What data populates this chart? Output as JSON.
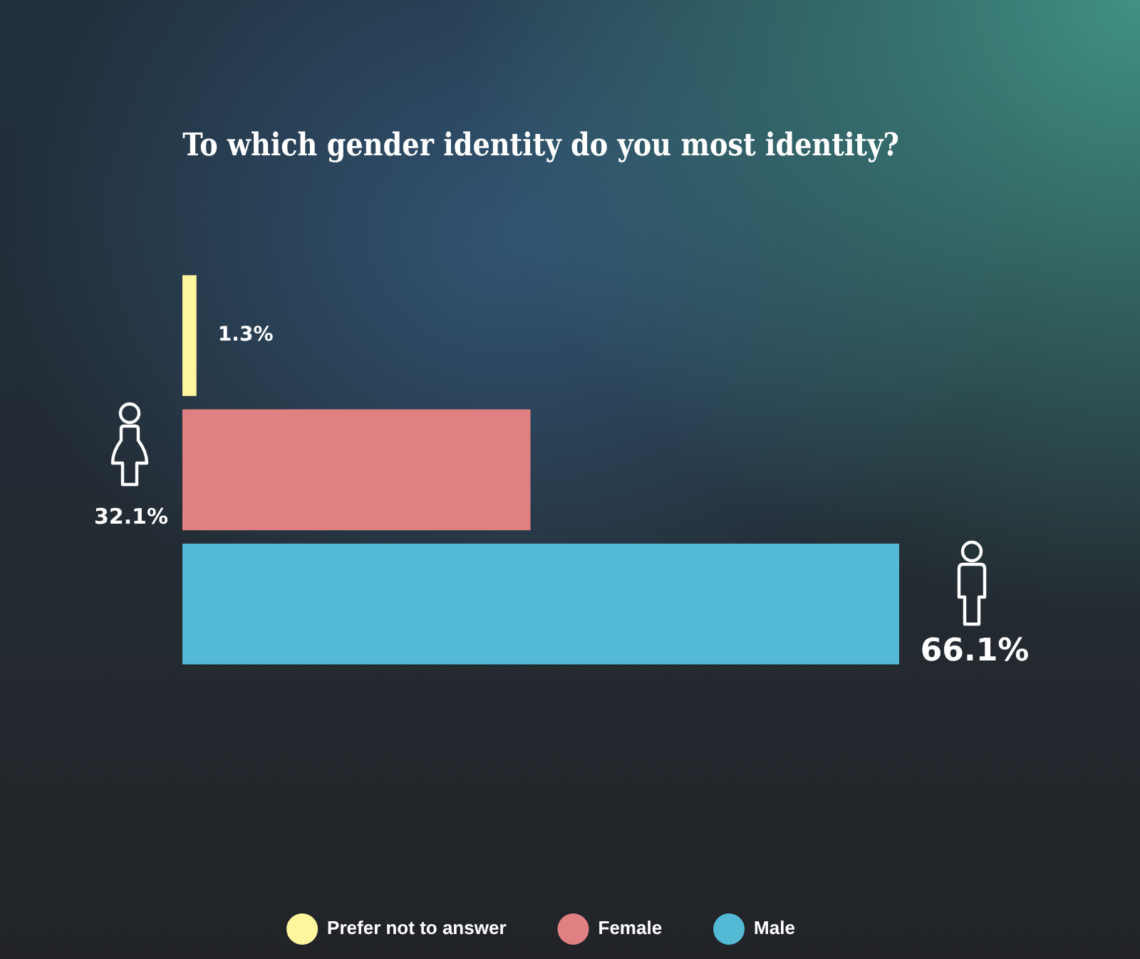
{
  "chart_data": {
    "type": "bar",
    "orientation": "horizontal",
    "title": "To which gender identity do you most identity?",
    "categories": [
      null
    ],
    "series": [
      {
        "name": "Prefer not to answer",
        "color": "#fff59d",
        "values": [
          1.3
        ],
        "value_labels": [
          "1.3%"
        ]
      },
      {
        "name": "Female",
        "color": "#e08082",
        "values": [
          32.1
        ],
        "value_labels": [
          "32.1%"
        ]
      },
      {
        "name": "Male",
        "color": "#53b9d4",
        "values": [
          66.1
        ],
        "value_labels": [
          "66.1%"
        ]
      }
    ],
    "legend": "bottom",
    "tick_labels": false
  }
}
